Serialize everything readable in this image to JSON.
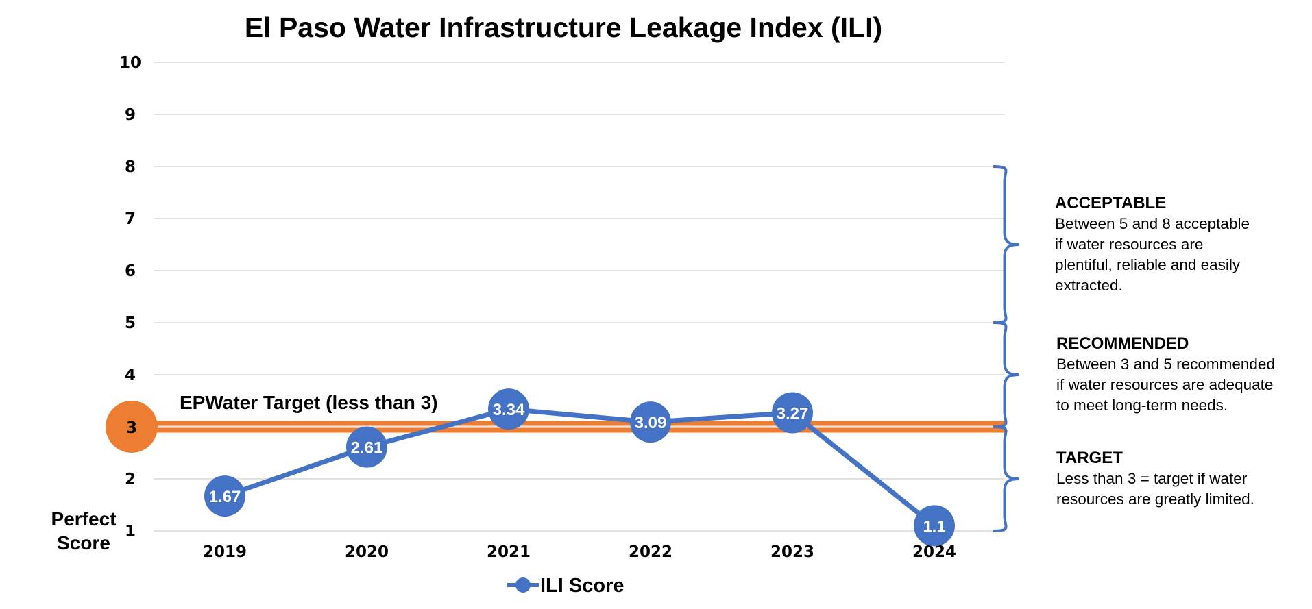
{
  "colors": {
    "series": "#4472C4",
    "target": "#ED7D31",
    "grid": "#D9D9D9",
    "text": "#000000"
  },
  "chart_data": {
    "type": "line",
    "title": "El Paso Water Infrastructure Leakage Index (ILI)",
    "xlabel": "",
    "ylabel": "",
    "categories": [
      "2019",
      "2020",
      "2021",
      "2022",
      "2023",
      "2024"
    ],
    "series": [
      {
        "name": "ILI Score",
        "values": [
          1.67,
          2.61,
          3.34,
          3.09,
          3.27,
          1.1
        ],
        "data_labels": [
          "1.67",
          "2.61",
          "3.34",
          "3.09",
          "3.27",
          "1.1"
        ]
      }
    ],
    "ylim": [
      1,
      10
    ],
    "yticks": [
      "1",
      "2",
      "3",
      "4",
      "5",
      "6",
      "7",
      "8",
      "9",
      "10"
    ],
    "grid": true,
    "legend_position": "bottom",
    "target": {
      "value": 3,
      "label": "EPWater Target (less than 3)",
      "marker_label": "3"
    },
    "min_label": "Perfect Score",
    "bands": [
      {
        "from": 5,
        "to": 8,
        "heading": "ACCEPTABLE",
        "lines": [
          "Between 5 and 8 acceptable",
          "if water resources are",
          "plentiful, reliable and easily",
          "extracted."
        ]
      },
      {
        "from": 3,
        "to": 5,
        "heading": "RECOMMENDED",
        "lines": [
          "Between 3 and 5 recommended",
          "if water resources are adequate",
          "to meet long-term needs."
        ]
      },
      {
        "from": 1,
        "to": 3,
        "heading": "TARGET",
        "lines": [
          "Less than 3 = target if water",
          "resources are greatly limited."
        ]
      }
    ]
  }
}
